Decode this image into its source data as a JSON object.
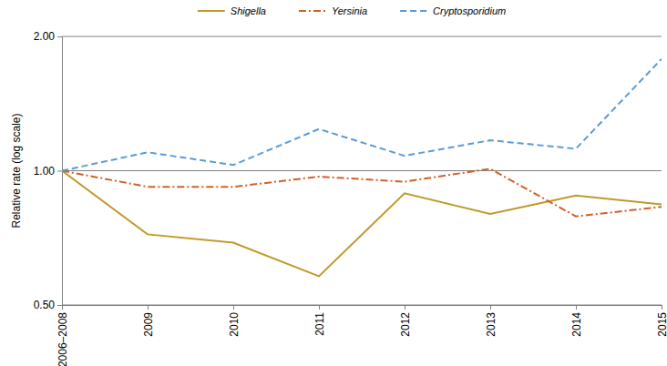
{
  "chart_data": {
    "type": "line",
    "y_label": "Relative rate (log scale)",
    "categories": [
      "2006–2008",
      "2009",
      "2010",
      "2011",
      "2012",
      "2013",
      "2014",
      "2015"
    ],
    "series": [
      {
        "name": "Shigella",
        "color": "#c09a2a",
        "line_style": "solid",
        "values": [
          1.0,
          0.72,
          0.69,
          0.58,
          0.89,
          0.8,
          0.88,
          0.84
        ]
      },
      {
        "name": "Yersinia",
        "color": "#d2602a",
        "line_style": "dashdot",
        "values": [
          1.0,
          0.92,
          0.92,
          0.97,
          0.945,
          1.01,
          0.79,
          0.83
        ]
      },
      {
        "name": "Cryptosporidium",
        "color": "#5b9bd5",
        "line_style": "dashed",
        "values": [
          1.0,
          1.1,
          1.03,
          1.24,
          1.08,
          1.17,
          1.12,
          1.78
        ]
      }
    ],
    "log": "y",
    "ylim": [
      0.5,
      2
    ],
    "yticks": [
      {
        "value": 0.5,
        "label": "0.50"
      },
      {
        "value": 1,
        "label": "1.00"
      },
      {
        "value": 2,
        "label": "2.00"
      }
    ],
    "grid": true,
    "legend": "top"
  }
}
